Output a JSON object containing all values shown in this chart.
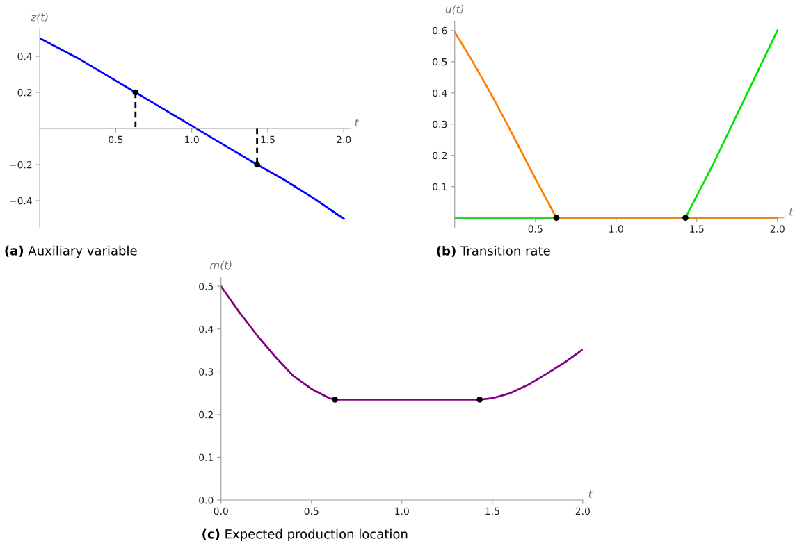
{
  "chart_data": [
    {
      "type": "line",
      "xlabel": "t",
      "ylabel": "z(t)",
      "annotations": [
        "(a) Auxiliary variable"
      ],
      "xlim": [
        0,
        2.04
      ],
      "ylim": [
        -0.55,
        0.55
      ],
      "xticks": [
        {
          "value": 0.5,
          "label": "0.5"
        },
        {
          "value": 1.0,
          "label": "1.0"
        },
        {
          "value": 1.5,
          "label": "1.5"
        },
        {
          "value": 2.0,
          "label": "2.0"
        }
      ],
      "yticks": [
        {
          "value": -0.4,
          "label": "−0.4"
        },
        {
          "value": -0.2,
          "label": "−0.2"
        },
        {
          "value": 0.2,
          "label": "0.2"
        },
        {
          "value": 0.4,
          "label": "0.4"
        }
      ],
      "series": [
        {
          "color": "#0000ff",
          "x": [
            0,
            0.25,
            0.5,
            0.63,
            0.75,
            1.0,
            1.25,
            1.43,
            1.6,
            1.8,
            2.0
          ],
          "values": [
            0.5,
            0.39,
            0.265,
            0.2,
            0.14,
            0.015,
            -0.11,
            -0.2,
            -0.28,
            -0.385,
            -0.5
          ]
        },
        {
          "color": "#000000",
          "line_style": "dashed",
          "x": [
            0.63,
            0.63
          ],
          "values": [
            0.2,
            0
          ]
        },
        {
          "color": "#000000",
          "line_style": "dashed",
          "x": [
            1.43,
            1.43
          ],
          "values": [
            0,
            -0.2
          ]
        },
        {
          "type": "scatter",
          "color": "#000000",
          "x": [
            0.63,
            1.43
          ],
          "values": [
            0.2,
            -0.2
          ]
        }
      ]
    },
    {
      "type": "line",
      "xlabel": "t",
      "ylabel": "u(t)",
      "annotations": [
        "(b) Transition rate"
      ],
      "xlim": [
        0,
        2.04
      ],
      "ylim": [
        -0.03,
        0.63
      ],
      "xticks": [
        {
          "value": 0.5,
          "label": "0.5"
        },
        {
          "value": 1.0,
          "label": "1.0"
        },
        {
          "value": 1.5,
          "label": "1.5"
        },
        {
          "value": 2.0,
          "label": "2.0"
        }
      ],
      "yticks": [
        0.1,
        0.2,
        0.3,
        0.4,
        0.5,
        0.6
      ],
      "series": [
        {
          "color": "#00e600",
          "x": [
            0,
            1.43,
            1.6,
            1.8,
            2.0
          ],
          "values": [
            0,
            0,
            0.17,
            0.385,
            0.6
          ]
        },
        {
          "color": "#ff8000",
          "x": [
            0,
            0.1,
            0.2,
            0.3,
            0.4,
            0.5,
            0.63,
            2.0
          ],
          "values": [
            0.595,
            0.51,
            0.42,
            0.325,
            0.225,
            0.125,
            0,
            0
          ]
        },
        {
          "type": "scatter",
          "color": "#000000",
          "x": [
            0.63,
            1.43
          ],
          "values": [
            0,
            0
          ]
        }
      ]
    },
    {
      "type": "line",
      "xlabel": "t",
      "ylabel": "m(t)",
      "annotations": [
        "(c) Expected production location"
      ],
      "xlim": [
        0,
        2.0
      ],
      "ylim": [
        0,
        0.52
      ],
      "xticks": [
        {
          "value": 0,
          "label": "0.0"
        },
        {
          "value": 0.5,
          "label": "0.5"
        },
        {
          "value": 1.0,
          "label": "1.0"
        },
        {
          "value": 1.5,
          "label": "1.5"
        },
        {
          "value": 2.0,
          "label": "2.0"
        }
      ],
      "yticks": [
        {
          "value": 0,
          "label": "0.0"
        },
        0.1,
        0.2,
        0.3,
        0.4,
        0.5
      ],
      "series": [
        {
          "color": "#800080",
          "x": [
            0,
            0.1,
            0.2,
            0.3,
            0.4,
            0.5,
            0.6,
            0.63,
            1.43,
            1.5,
            1.6,
            1.7,
            1.8,
            1.9,
            2.0
          ],
          "values": [
            0.5,
            0.44,
            0.385,
            0.335,
            0.29,
            0.26,
            0.238,
            0.235,
            0.235,
            0.238,
            0.25,
            0.27,
            0.295,
            0.322,
            0.352
          ]
        },
        {
          "type": "scatter",
          "color": "#000000",
          "x": [
            0.63,
            1.43
          ],
          "values": [
            0.235,
            0.235
          ]
        }
      ]
    }
  ]
}
